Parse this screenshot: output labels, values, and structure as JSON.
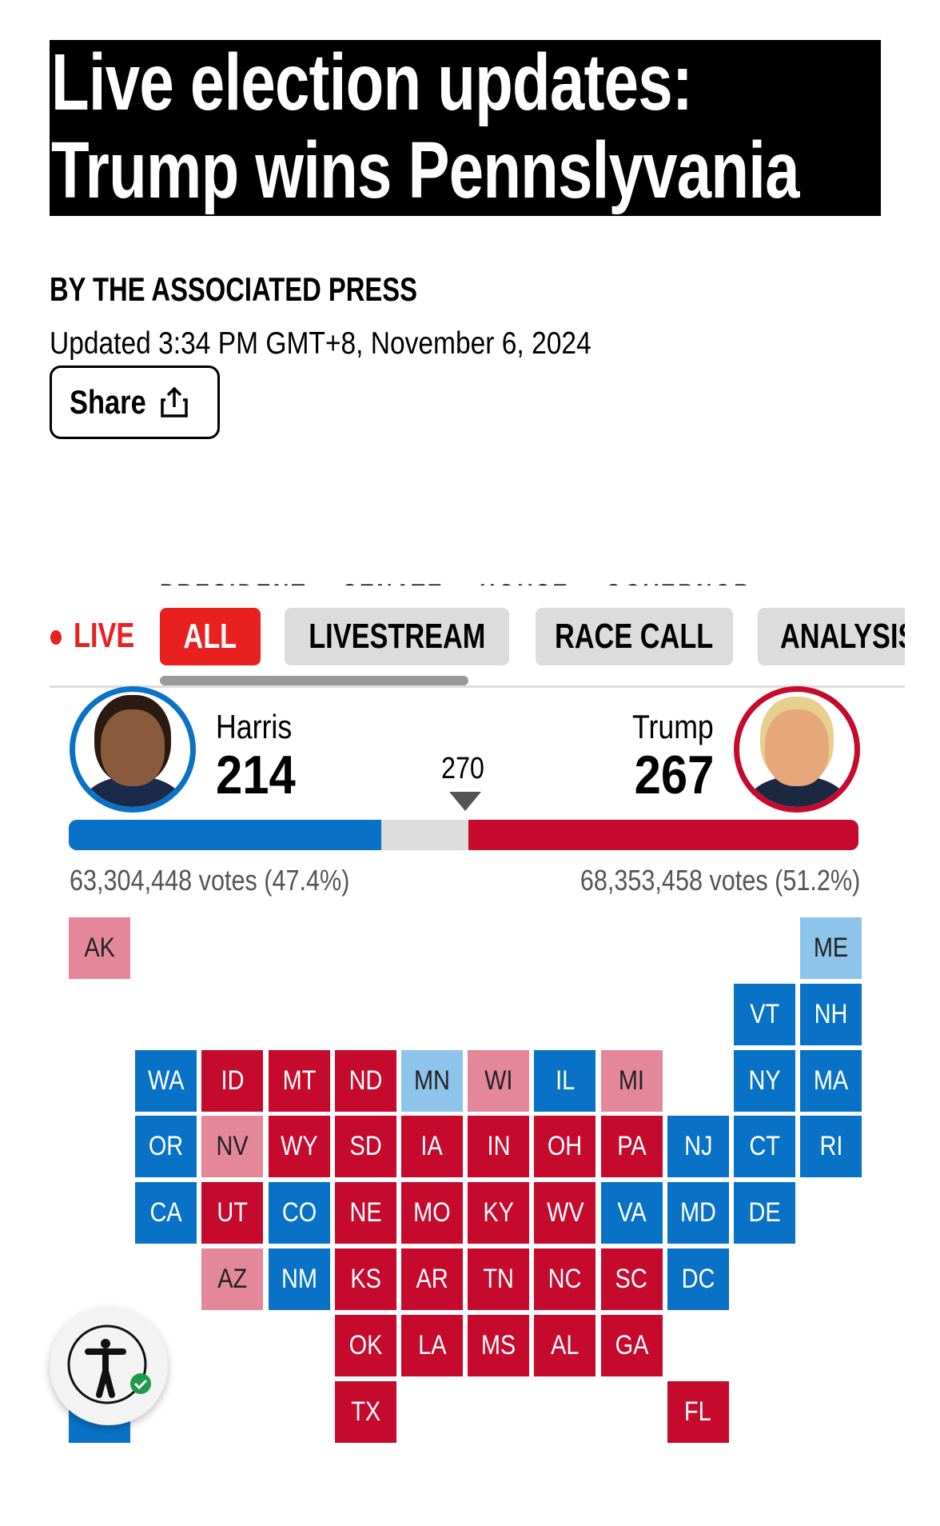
{
  "headline": {
    "line1": "Live election updates:",
    "line2": "Trump wins Pennslyvania"
  },
  "byline": "BY  THE ASSOCIATED PRESS",
  "updated": "Updated 3:34 PM GMT+8, November 6, 2024",
  "share_label": "Share",
  "subnav": [
    "PRESIDENT",
    "SENATE",
    "HOUSE",
    "GOVERNOR"
  ],
  "live_label": "LIVE",
  "filters": [
    "ALL",
    "LIVESTREAM",
    "RACE CALL",
    "ANALYSIS"
  ],
  "active_filter": "ALL",
  "colors": {
    "dem": "#0a72c6",
    "lean_dem": "#8ec3ea",
    "rep": "#c60a2d",
    "lean_rep": "#e5879a",
    "live": "#e8201f"
  },
  "race": {
    "harris": {
      "name": "Harris",
      "ev": "214",
      "votes": "63,304,448 votes (47.4%)"
    },
    "trump": {
      "name": "Trump",
      "ev": "267",
      "votes": "68,353,458 votes (51.2%)"
    },
    "threshold": "270",
    "total_ev": 538
  },
  "states": [
    {
      "s": "AK",
      "c": 0,
      "r": 0,
      "p": "lean_rep"
    },
    {
      "s": "ME",
      "c": 11,
      "r": 0,
      "p": "lean_dem"
    },
    {
      "s": "VT",
      "c": 10,
      "r": 1,
      "p": "dem"
    },
    {
      "s": "NH",
      "c": 11,
      "r": 1,
      "p": "dem"
    },
    {
      "s": "WA",
      "c": 1,
      "r": 2,
      "p": "dem"
    },
    {
      "s": "ID",
      "c": 2,
      "r": 2,
      "p": "rep"
    },
    {
      "s": "MT",
      "c": 3,
      "r": 2,
      "p": "rep"
    },
    {
      "s": "ND",
      "c": 4,
      "r": 2,
      "p": "rep"
    },
    {
      "s": "MN",
      "c": 5,
      "r": 2,
      "p": "lean_dem"
    },
    {
      "s": "WI",
      "c": 6,
      "r": 2,
      "p": "lean_rep"
    },
    {
      "s": "IL",
      "c": 7,
      "r": 2,
      "p": "dem"
    },
    {
      "s": "MI",
      "c": 8,
      "r": 2,
      "p": "lean_rep"
    },
    {
      "s": "NY",
      "c": 10,
      "r": 2,
      "p": "dem"
    },
    {
      "s": "MA",
      "c": 11,
      "r": 2,
      "p": "dem"
    },
    {
      "s": "OR",
      "c": 1,
      "r": 3,
      "p": "dem"
    },
    {
      "s": "NV",
      "c": 2,
      "r": 3,
      "p": "lean_rep"
    },
    {
      "s": "WY",
      "c": 3,
      "r": 3,
      "p": "rep"
    },
    {
      "s": "SD",
      "c": 4,
      "r": 3,
      "p": "rep"
    },
    {
      "s": "IA",
      "c": 5,
      "r": 3,
      "p": "rep"
    },
    {
      "s": "IN",
      "c": 6,
      "r": 3,
      "p": "rep"
    },
    {
      "s": "OH",
      "c": 7,
      "r": 3,
      "p": "rep"
    },
    {
      "s": "PA",
      "c": 8,
      "r": 3,
      "p": "rep"
    },
    {
      "s": "NJ",
      "c": 9,
      "r": 3,
      "p": "dem"
    },
    {
      "s": "CT",
      "c": 10,
      "r": 3,
      "p": "dem"
    },
    {
      "s": "RI",
      "c": 11,
      "r": 3,
      "p": "dem"
    },
    {
      "s": "CA",
      "c": 1,
      "r": 4,
      "p": "dem"
    },
    {
      "s": "UT",
      "c": 2,
      "r": 4,
      "p": "rep"
    },
    {
      "s": "CO",
      "c": 3,
      "r": 4,
      "p": "dem"
    },
    {
      "s": "NE",
      "c": 4,
      "r": 4,
      "p": "rep"
    },
    {
      "s": "MO",
      "c": 5,
      "r": 4,
      "p": "rep"
    },
    {
      "s": "KY",
      "c": 6,
      "r": 4,
      "p": "rep"
    },
    {
      "s": "WV",
      "c": 7,
      "r": 4,
      "p": "rep"
    },
    {
      "s": "VA",
      "c": 8,
      "r": 4,
      "p": "dem"
    },
    {
      "s": "MD",
      "c": 9,
      "r": 4,
      "p": "dem"
    },
    {
      "s": "DE",
      "c": 10,
      "r": 4,
      "p": "dem"
    },
    {
      "s": "AZ",
      "c": 2,
      "r": 5,
      "p": "lean_rep"
    },
    {
      "s": "NM",
      "c": 3,
      "r": 5,
      "p": "dem"
    },
    {
      "s": "KS",
      "c": 4,
      "r": 5,
      "p": "rep"
    },
    {
      "s": "AR",
      "c": 5,
      "r": 5,
      "p": "rep"
    },
    {
      "s": "TN",
      "c": 6,
      "r": 5,
      "p": "rep"
    },
    {
      "s": "NC",
      "c": 7,
      "r": 5,
      "p": "rep"
    },
    {
      "s": "SC",
      "c": 8,
      "r": 5,
      "p": "rep"
    },
    {
      "s": "DC",
      "c": 9,
      "r": 5,
      "p": "dem"
    },
    {
      "s": "OK",
      "c": 4,
      "r": 6,
      "p": "rep"
    },
    {
      "s": "LA",
      "c": 5,
      "r": 6,
      "p": "rep"
    },
    {
      "s": "MS",
      "c": 6,
      "r": 6,
      "p": "rep"
    },
    {
      "s": "AL",
      "c": 7,
      "r": 6,
      "p": "rep"
    },
    {
      "s": "GA",
      "c": 8,
      "r": 6,
      "p": "rep"
    },
    {
      "s": "",
      "c": 0,
      "r": 7,
      "p": "dem"
    },
    {
      "s": "TX",
      "c": 4,
      "r": 7,
      "p": "rep"
    },
    {
      "s": "FL",
      "c": 9,
      "r": 7,
      "p": "rep"
    }
  ]
}
